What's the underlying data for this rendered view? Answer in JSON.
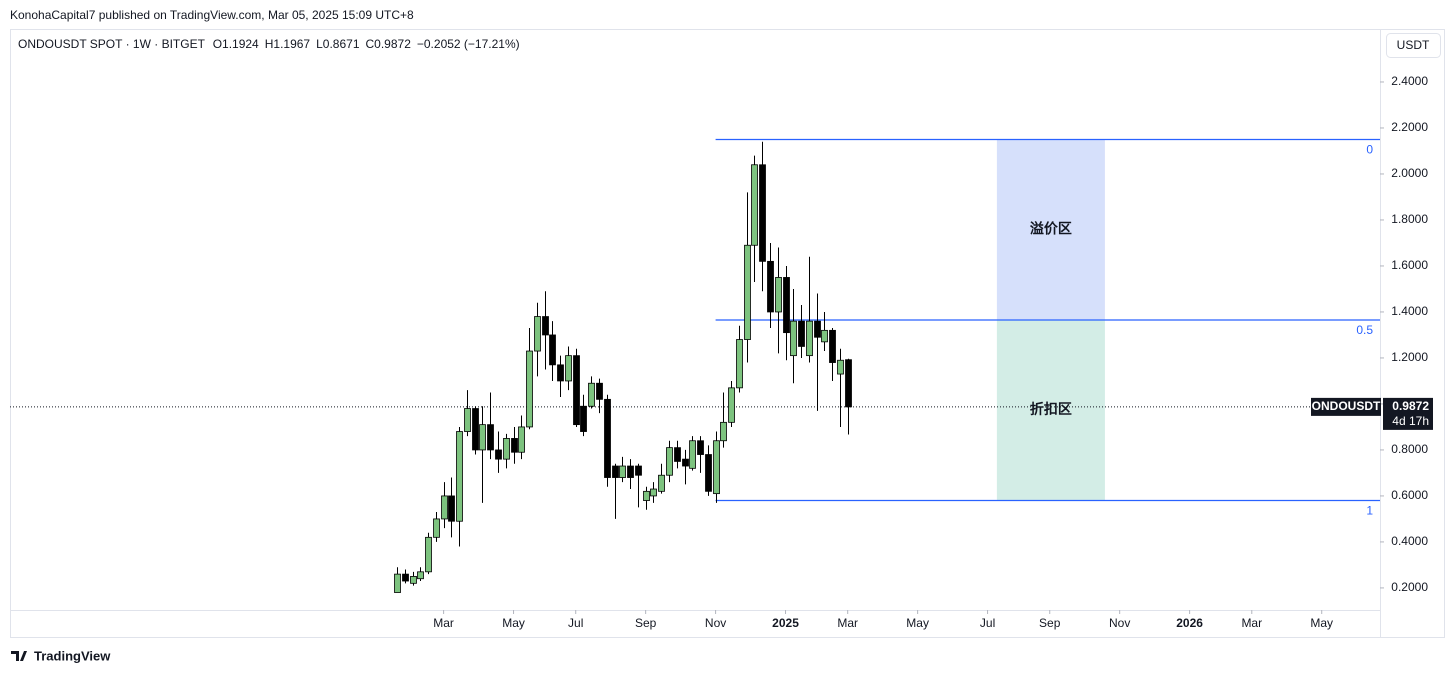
{
  "header": {
    "published": "KonohaCapital7 published on TradingView.com, Mar 05, 2025 15:09 UTC+8",
    "brand": "TradingView"
  },
  "chart_data": {
    "type": "candlestick",
    "symbol": "ONDOUSDT SPOT · 1W · BITGET",
    "ohlc_letters": [
      "O",
      "H",
      "L",
      "C"
    ],
    "change": "−0.2052 (−17.21%)",
    "currency": "USDT",
    "price_tag": "ONDOUSDT",
    "countdown": "4d 17h",
    "up_color": "#7dc37f",
    "down_color": "#000000",
    "open": [
      0.18,
      0.26,
      0.22,
      0.24,
      0.27,
      0.42,
      0.5,
      0.6,
      0.49,
      0.88,
      0.98,
      0.8,
      0.91,
      0.8,
      0.76,
      0.85,
      0.79,
      0.9,
      1.23,
      1.38,
      1.3,
      1.17,
      1.1,
      1.21,
      0.99,
      0.99,
      1.09,
      1.02,
      0.73,
      0.68,
      0.73,
      0.73,
      0.58,
      0.6,
      0.62,
      0.69,
      0.81,
      0.76,
      0.72,
      0.84,
      0.78,
      0.61,
      0.84,
      0.92,
      1.07,
      1.28,
      1.69,
      2.04,
      1.62,
      1.4,
      1.55,
      1.21,
      1.36,
      1.21,
      1.36,
      1.27,
      1.32,
      1.13,
      1.1924
    ],
    "high": [
      0.29,
      0.28,
      0.27,
      0.29,
      0.44,
      0.53,
      0.66,
      0.68,
      0.9,
      1.06,
      0.99,
      0.99,
      1.05,
      0.88,
      0.87,
      0.9,
      0.95,
      1.33,
      1.44,
      1.49,
      1.36,
      1.21,
      1.25,
      1.24,
      1.04,
      1.12,
      1.11,
      1.04,
      0.74,
      0.77,
      0.76,
      0.74,
      0.64,
      0.66,
      0.74,
      0.84,
      0.84,
      0.8,
      0.86,
      0.86,
      0.82,
      0.88,
      1.05,
      1.1,
      1.34,
      1.92,
      2.08,
      2.14,
      1.7,
      1.68,
      1.6,
      1.5,
      1.43,
      1.64,
      1.48,
      1.4,
      1.33,
      1.24,
      1.1967
    ],
    "low": [
      0.18,
      0.22,
      0.21,
      0.23,
      0.26,
      0.4,
      0.46,
      0.42,
      0.38,
      0.86,
      0.78,
      0.57,
      0.76,
      0.7,
      0.72,
      0.74,
      0.76,
      0.89,
      1.12,
      1.15,
      1.1,
      1.03,
      1.06,
      0.9,
      0.86,
      0.98,
      0.96,
      0.64,
      0.5,
      0.66,
      0.63,
      0.55,
      0.54,
      0.57,
      0.61,
      0.66,
      0.72,
      0.65,
      0.71,
      0.7,
      0.6,
      0.57,
      0.81,
      0.9,
      1.05,
      1.18,
      1.53,
      1.49,
      1.33,
      1.22,
      1.19,
      1.09,
      1.2,
      1.18,
      0.97,
      1.23,
      1.1,
      0.9,
      0.8671
    ],
    "close": [
      0.26,
      0.23,
      0.25,
      0.27,
      0.42,
      0.5,
      0.6,
      0.49,
      0.88,
      0.98,
      0.8,
      0.91,
      0.8,
      0.76,
      0.85,
      0.79,
      0.9,
      1.23,
      1.38,
      1.3,
      1.17,
      1.1,
      1.21,
      0.91,
      0.88,
      1.09,
      1.02,
      0.68,
      0.68,
      0.73,
      0.68,
      0.69,
      0.62,
      0.63,
      0.69,
      0.81,
      0.75,
      0.73,
      0.84,
      0.78,
      0.62,
      0.84,
      0.92,
      1.07,
      1.28,
      1.69,
      2.04,
      1.62,
      1.4,
      1.55,
      1.31,
      1.36,
      1.25,
      1.36,
      1.29,
      1.32,
      1.18,
      1.19,
      0.9872
    ],
    "xlim": [
      -49.8,
      126.5
    ],
    "xticks": [
      {
        "value": 6,
        "label": "Mar"
      },
      {
        "value": 15,
        "label": "May"
      },
      {
        "value": 23,
        "label": "Jul"
      },
      {
        "value": 32,
        "label": "Sep"
      },
      {
        "value": 41,
        "label": "Nov"
      },
      {
        "value": 50,
        "label": "2025"
      },
      {
        "value": 58,
        "label": "Mar"
      },
      {
        "value": 67,
        "label": "May"
      },
      {
        "value": 76,
        "label": "Jul"
      },
      {
        "value": 84,
        "label": "Sep"
      },
      {
        "value": 93,
        "label": "Nov"
      },
      {
        "value": 102,
        "label": "2026"
      },
      {
        "value": 110,
        "label": "Mar"
      },
      {
        "value": 119,
        "label": "May"
      }
    ],
    "ylim": [
      0.104,
      2.626
    ],
    "yticks": [
      {
        "value": 0.2,
        "label": "0.2000"
      },
      {
        "value": 0.4,
        "label": "0.4000"
      },
      {
        "value": 0.6,
        "label": "0.6000"
      },
      {
        "value": 0.8,
        "label": "0.8000"
      },
      {
        "value": 1.0,
        "label": "1.0000"
      },
      {
        "value": 1.2,
        "label": "1.2000"
      },
      {
        "value": 1.4,
        "label": "1.4000"
      },
      {
        "value": 1.6,
        "label": "1.6000"
      },
      {
        "value": 1.8,
        "label": "1.8000"
      },
      {
        "value": 2.0,
        "label": "2.0000"
      },
      {
        "value": 2.2,
        "label": "2.2000"
      },
      {
        "value": 2.4,
        "label": "2.4000"
      }
    ],
    "fib_start": 41,
    "fib_color": "#2962ff",
    "fib_levels": [
      {
        "label": "0",
        "value": 2.15
      },
      {
        "label": "0.5",
        "value": 1.365
      },
      {
        "label": "1",
        "value": 0.58
      }
    ],
    "zone_range": [
      77.2,
      91.1
    ],
    "zones": [
      {
        "label": "溢价区",
        "color": "#d6e0fb"
      },
      {
        "label": "折扣区",
        "color": "#d3ede6"
      }
    ]
  }
}
